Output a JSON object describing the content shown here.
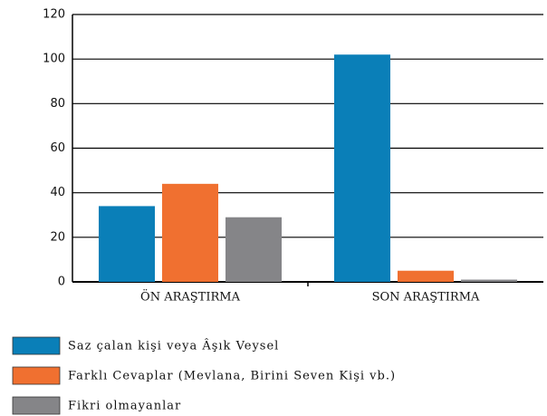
{
  "chart_data": {
    "type": "bar",
    "categories": [
      "ÖN ARAŞTIRMA",
      "SON ARAŞTIRMA"
    ],
    "series": [
      {
        "name": "Saz çalan kişi veya Âşık Veysel",
        "color": "#0a7fb8",
        "values": [
          34,
          102
        ]
      },
      {
        "name": "Farklı Cevaplar (Mevlana, Birini Seven Kişi vb.)",
        "color": "#f07030",
        "values": [
          44,
          5
        ]
      },
      {
        "name": "Fikri olmayanlar",
        "color": "#858588",
        "values": [
          29,
          1
        ]
      }
    ],
    "ylim": [
      0,
      120
    ],
    "yticks": [
      0,
      20,
      40,
      60,
      80,
      100,
      120
    ],
    "grid": true
  }
}
